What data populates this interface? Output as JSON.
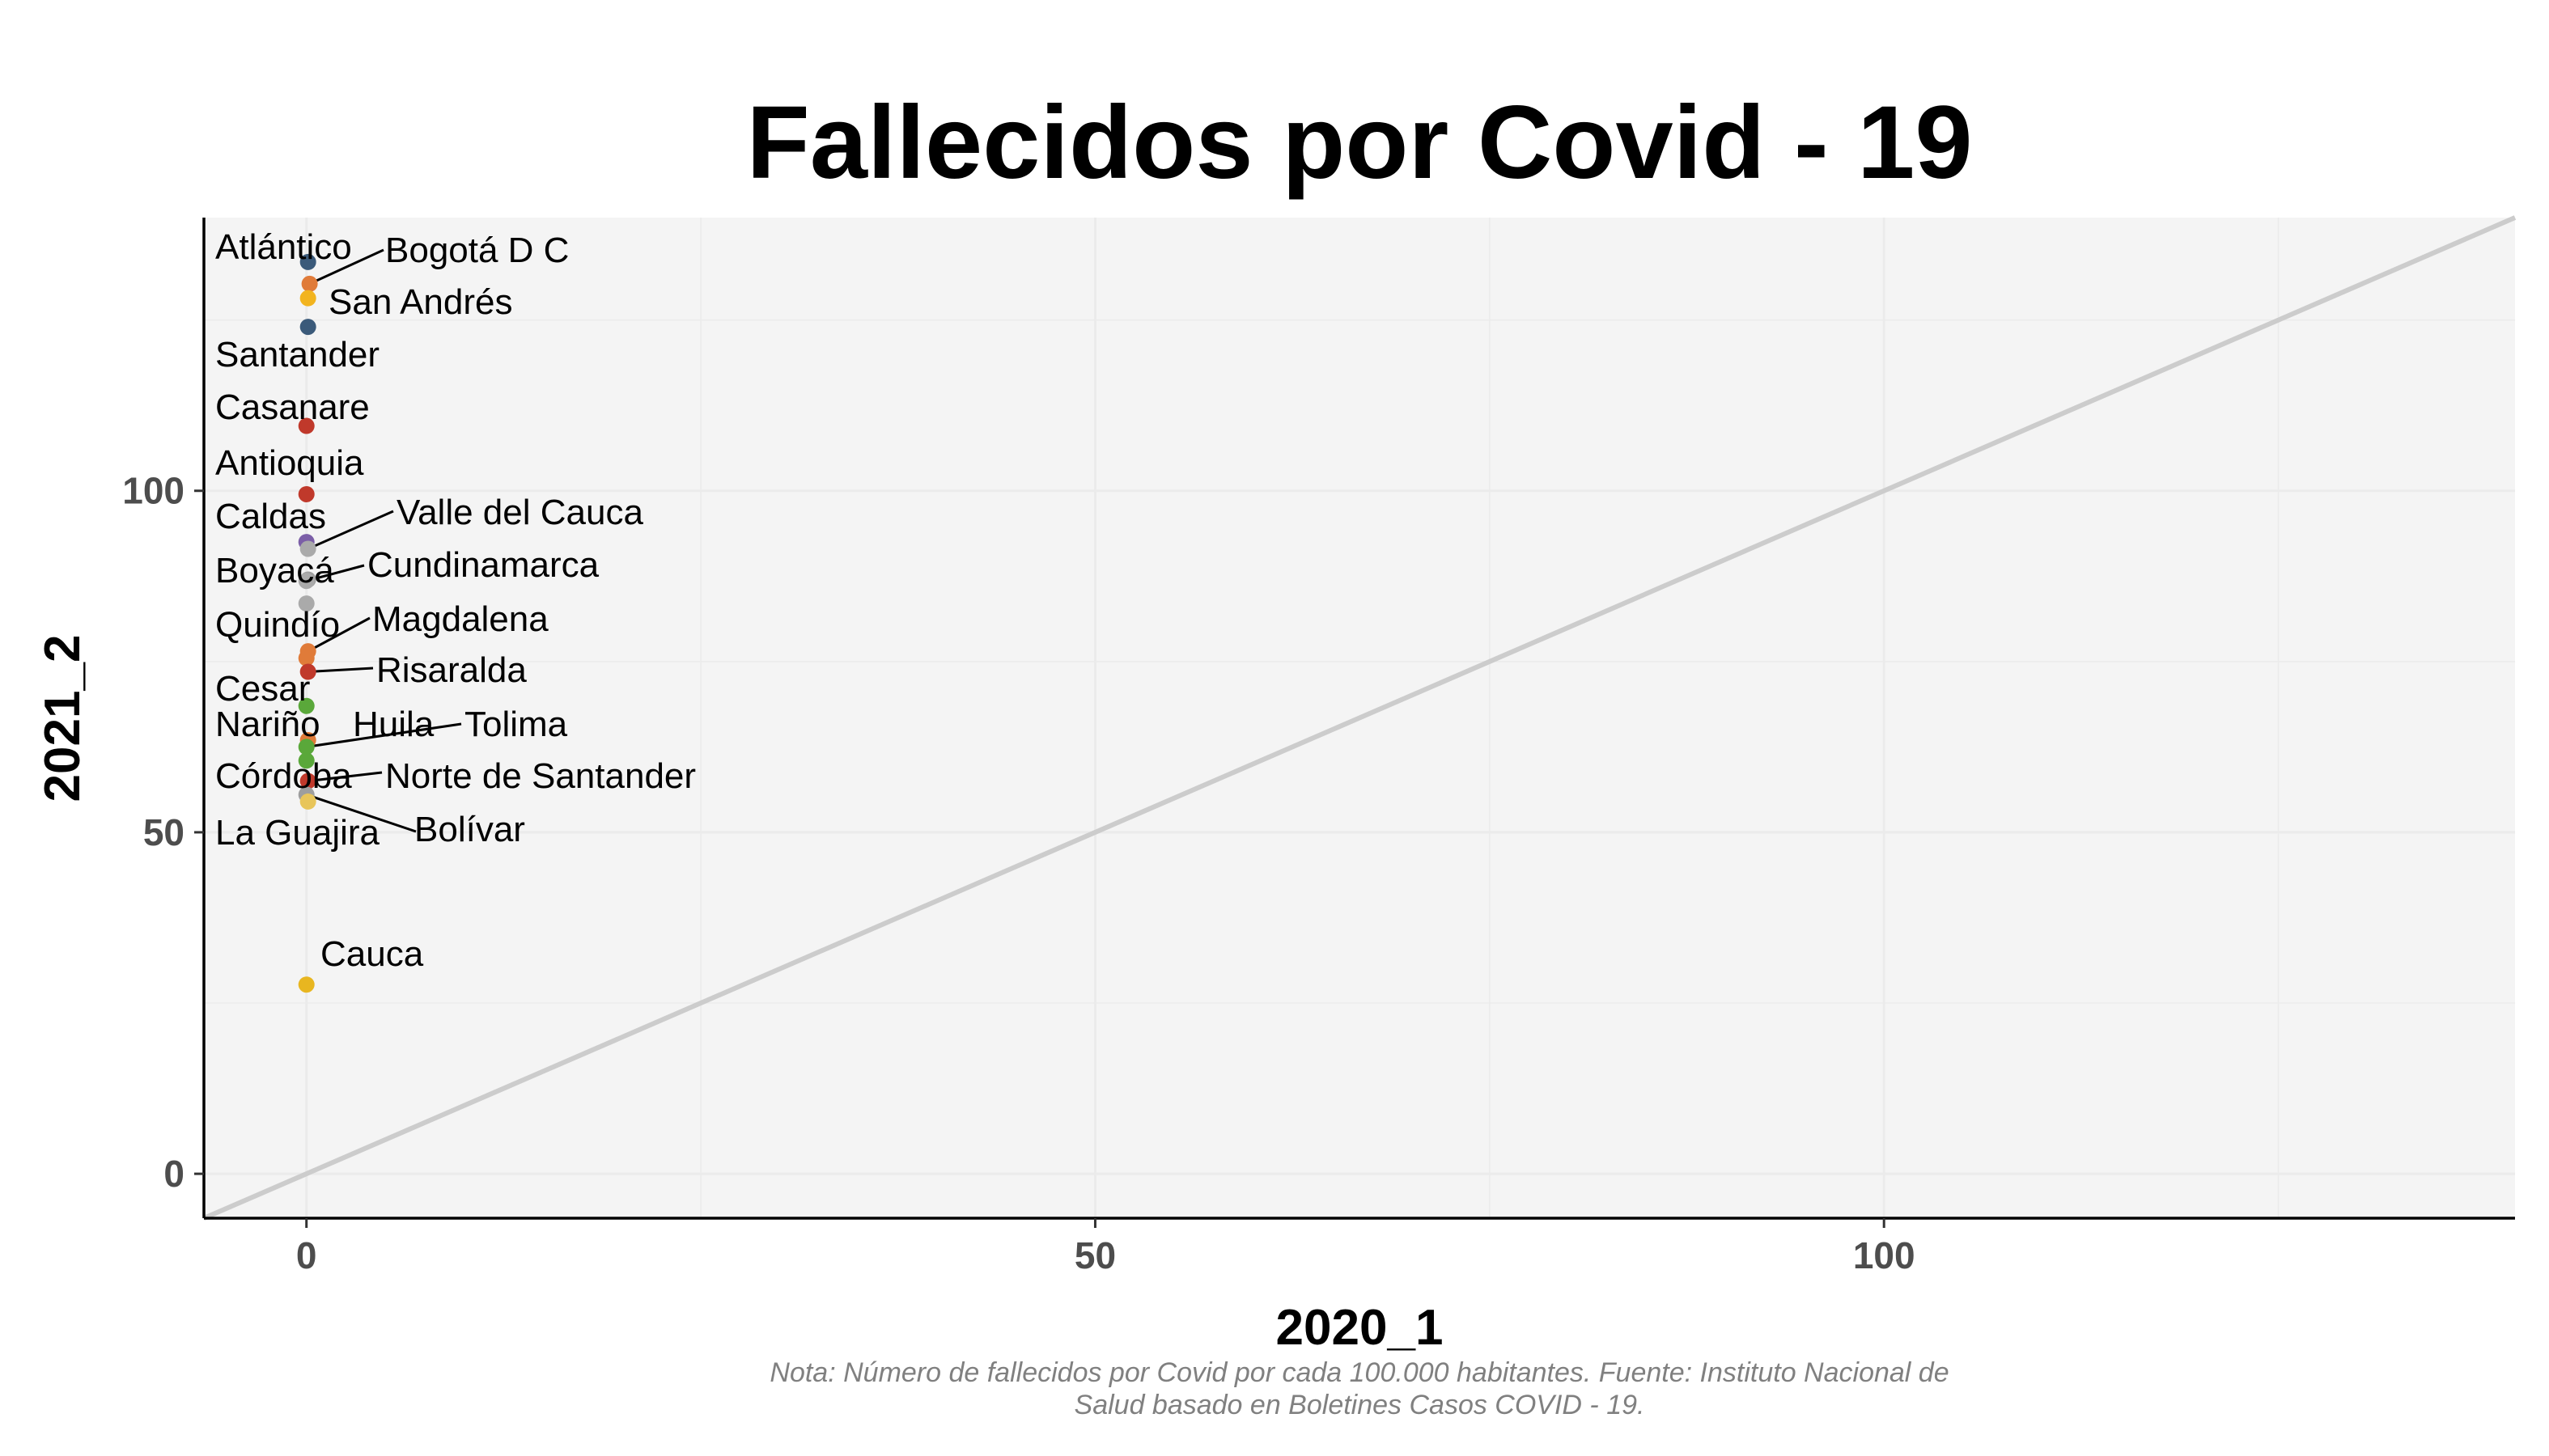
{
  "chart_data": {
    "type": "scatter",
    "title": "Fallecidos por Covid - 19",
    "xlabel": "2020_1",
    "ylabel": "2021_2",
    "xlim": [
      -6.5,
      140
    ],
    "ylim": [
      -6.5,
      140
    ],
    "xticks": [
      0,
      50,
      100
    ],
    "yticks": [
      0,
      50,
      100
    ],
    "grid": true,
    "reference_line": "y = x",
    "caption_lines": [
      "Nota: Número de fallecidos por Covid por cada 100.000 habitantes. Fuente: Instituto Nacional de",
      "Salud basado en Boletines Casos COVID - 19."
    ],
    "points": [
      {
        "label": "Atlántico",
        "x": 0.1,
        "y": 133.5,
        "color": "#3b5a7a"
      },
      {
        "label": "Bogotá D C",
        "x": 0.2,
        "y": 130.3,
        "color": "#e07b39"
      },
      {
        "label": "San Andrés",
        "x": 0.1,
        "y": 128.2,
        "color": "#f2b41f"
      },
      {
        "label": "Santander",
        "x": 0.1,
        "y": 124.0,
        "color": "#3b5a7a"
      },
      {
        "label": "Casanare",
        "x": 0.0,
        "y": 109.5,
        "color": "#c0392b"
      },
      {
        "label": "Antioquia",
        "x": 0.0,
        "y": 99.5,
        "color": "#c0392b"
      },
      {
        "label": "Caldas",
        "x": 0.0,
        "y": 92.5,
        "color": "#7b5ea7"
      },
      {
        "label": "Valle del Cauca",
        "x": 0.1,
        "y": 91.5,
        "color": "#aaaaaa"
      },
      {
        "label": "Boyacá",
        "x": 0.1,
        "y": 87.0,
        "color": "#9e9e9e"
      },
      {
        "label": "Cundinamarca",
        "x": 0.0,
        "y": 86.8,
        "color": "#aaaaaa"
      },
      {
        "label": "Quindío",
        "x": 0.0,
        "y": 83.5,
        "color": "#aaaaaa"
      },
      {
        "label": "Magdalena",
        "x": 0.1,
        "y": 76.5,
        "color": "#e07b39"
      },
      {
        "label": "Cesar",
        "x": 0.0,
        "y": 75.5,
        "color": "#e07b39"
      },
      {
        "label": "Risaralda",
        "x": 0.1,
        "y": 73.5,
        "color": "#c0392b"
      },
      {
        "label": "Nariño",
        "x": 0.0,
        "y": 68.5,
        "color": "#5aa83a"
      },
      {
        "label": "Huila",
        "x": 0.1,
        "y": 63.5,
        "color": "#e07b39"
      },
      {
        "label": "Tolima",
        "x": 0.0,
        "y": 62.5,
        "color": "#5aa83a"
      },
      {
        "label": "Córdoba",
        "x": 0.0,
        "y": 60.5,
        "color": "#5aa83a"
      },
      {
        "label": "Norte de Santander",
        "x": 0.1,
        "y": 57.5,
        "color": "#c0392b"
      },
      {
        "label": "Bolívar",
        "x": 0.0,
        "y": 55.5,
        "color": "#9e9e9e"
      },
      {
        "label": "La Guajira",
        "x": 0.1,
        "y": 54.5,
        "color": "#e8c55a"
      },
      {
        "label": "Cauca",
        "x": 0.0,
        "y": 27.7,
        "color": "#e8b620"
      }
    ]
  }
}
